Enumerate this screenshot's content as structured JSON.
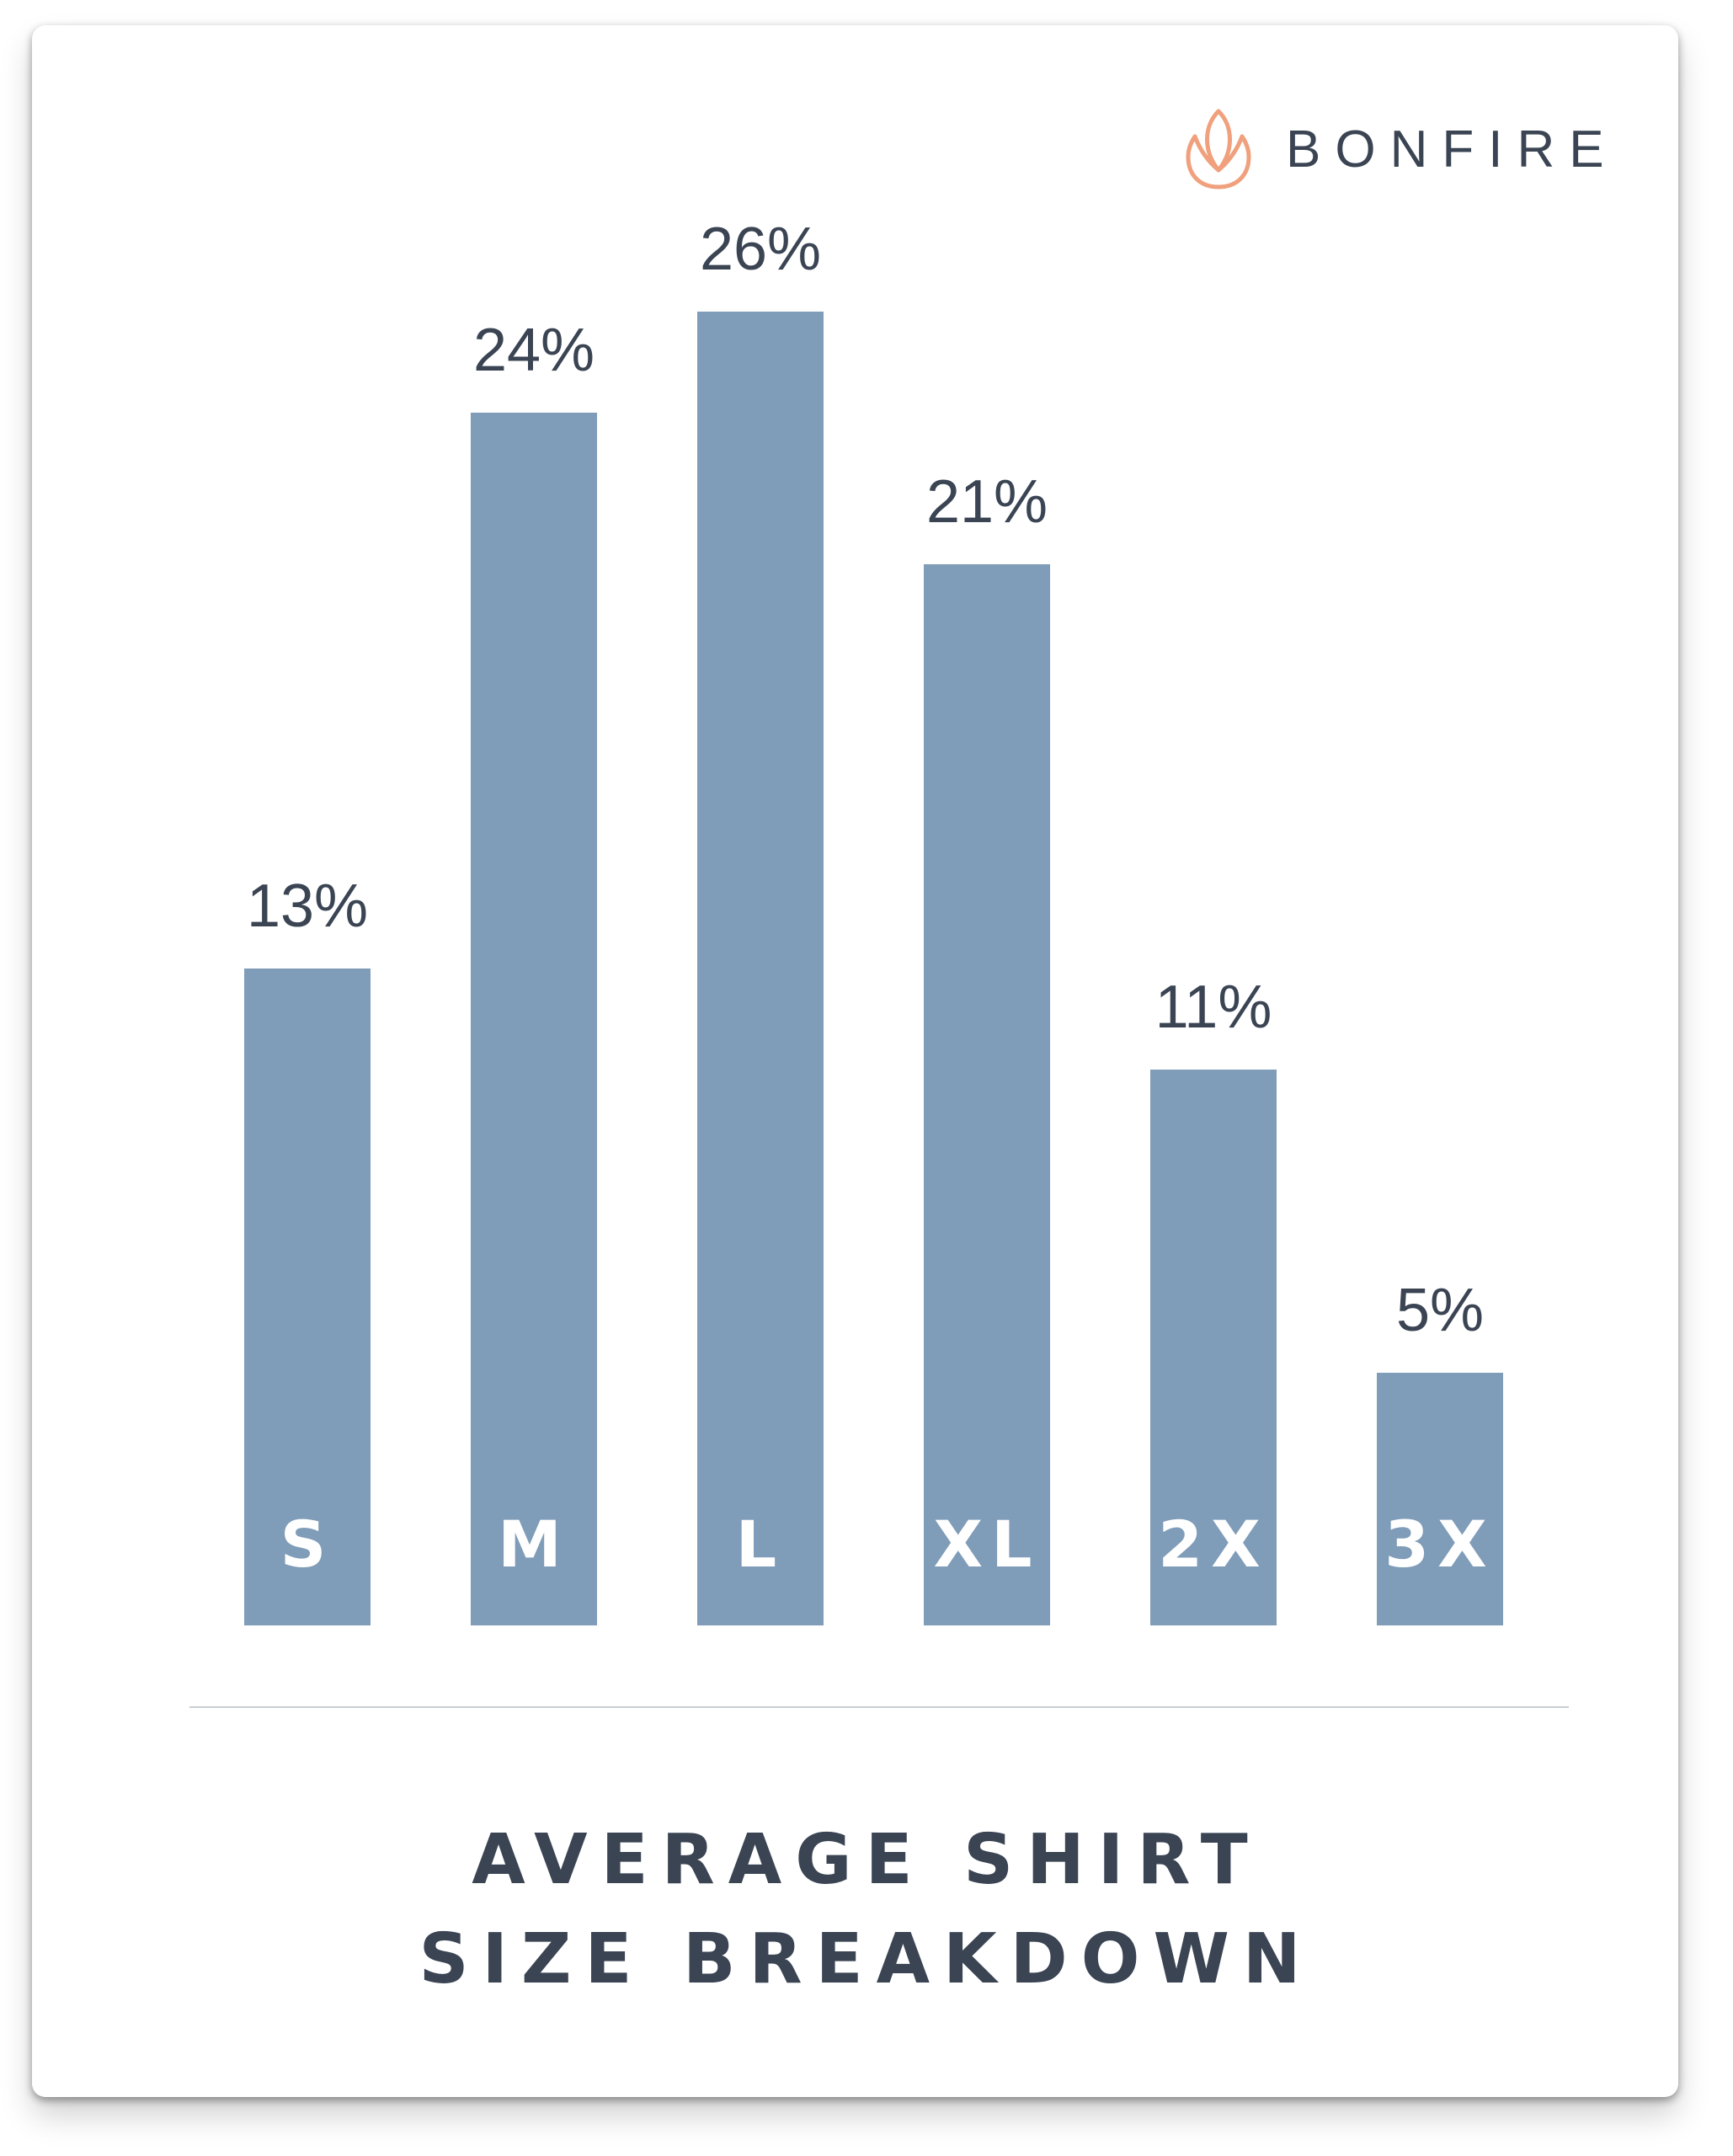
{
  "brand": {
    "name": "BONFIRE",
    "icon": "lotus-flame-icon",
    "color": "#f0a07c"
  },
  "colors": {
    "bar": "#7f9cb8",
    "text": "#3a4453",
    "divider": "#c9ccd0"
  },
  "chart_data": {
    "type": "bar",
    "categories": [
      "S",
      "M",
      "L",
      "XL",
      "2X",
      "3X"
    ],
    "values": [
      13,
      24,
      26,
      21,
      11,
      5
    ],
    "value_labels": [
      "13%",
      "24%",
      "26%",
      "21%",
      "11%",
      "5%"
    ],
    "title_lines": [
      "AVERAGE SHIRT",
      "SIZE BREAKDOWN"
    ],
    "ylim": [
      0,
      26
    ],
    "grid": false,
    "legend": "none"
  }
}
